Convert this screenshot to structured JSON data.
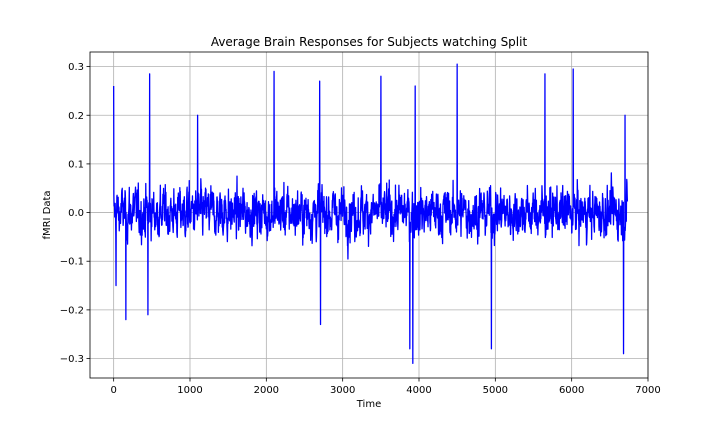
{
  "chart_data": {
    "type": "line",
    "title": "Average Brain Responses for Subjects watching Split",
    "xlabel": "Time",
    "ylabel": "fMRI Data",
    "xlim": [
      -310,
      7000
    ],
    "ylim": [
      -0.34,
      0.33
    ],
    "xticks": [
      0,
      1000,
      2000,
      3000,
      4000,
      5000,
      6000,
      7000
    ],
    "xtick_labels": [
      "0",
      "1000",
      "2000",
      "3000",
      "4000",
      "5000",
      "6000",
      "7000"
    ],
    "yticks": [
      -0.3,
      -0.2,
      -0.1,
      0.0,
      0.1,
      0.2,
      0.3
    ],
    "ytick_labels": [
      "−0.3",
      "−0.2",
      "−0.1",
      "0.0",
      "0.1",
      "0.2",
      "0.3"
    ],
    "grid": true,
    "series": [
      {
        "name": "",
        "color": "#0000ff",
        "x_range": [
          0,
          6730
        ],
        "notable_points": [
          {
            "x": 0,
            "y": 0.26
          },
          {
            "x": 30,
            "y": -0.15
          },
          {
            "x": 160,
            "y": -0.22
          },
          {
            "x": 450,
            "y": -0.21
          },
          {
            "x": 470,
            "y": 0.285
          },
          {
            "x": 1100,
            "y": 0.2
          },
          {
            "x": 2100,
            "y": 0.29
          },
          {
            "x": 2700,
            "y": 0.27
          },
          {
            "x": 2710,
            "y": -0.23
          },
          {
            "x": 3500,
            "y": 0.28
          },
          {
            "x": 3880,
            "y": -0.28
          },
          {
            "x": 3920,
            "y": -0.31
          },
          {
            "x": 3950,
            "y": 0.26
          },
          {
            "x": 4500,
            "y": 0.305
          },
          {
            "x": 4950,
            "y": -0.28
          },
          {
            "x": 5650,
            "y": 0.285
          },
          {
            "x": 6020,
            "y": 0.295
          },
          {
            "x": 6680,
            "y": -0.29
          },
          {
            "x": 6700,
            "y": 0.2
          }
        ]
      }
    ]
  }
}
